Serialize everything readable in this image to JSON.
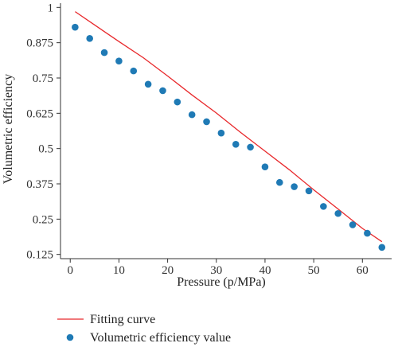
{
  "chart_data": {
    "type": "scatter",
    "xlabel": "Pressure (p/MPa)",
    "ylabel": "Volumetric efficiency",
    "xlim": [
      -2,
      66
    ],
    "ylim": [
      0.11,
      1.015
    ],
    "x_ticks": [
      0,
      10,
      20,
      30,
      40,
      50,
      60
    ],
    "x_tick_labels": [
      "0",
      "10",
      "20",
      "30",
      "40",
      "50",
      "60"
    ],
    "y_ticks": [
      0.125,
      0.25,
      0.375,
      0.5,
      0.625,
      0.75,
      0.875,
      1
    ],
    "y_tick_labels": [
      "0.125",
      "0.25",
      "0.375",
      "0.5",
      "0.625",
      "0.75",
      "0.875",
      "1"
    ],
    "grid": false,
    "legend_position": "bottom-left, below plot",
    "series": [
      {
        "name": "Fitting curve",
        "kind": "line",
        "color": "#e8282b",
        "x": [
          1,
          5,
          10,
          15,
          20,
          25,
          30,
          35,
          40,
          45,
          50,
          55,
          60,
          64
        ],
        "y": [
          0.985,
          0.938,
          0.879,
          0.822,
          0.757,
          0.69,
          0.626,
          0.557,
          0.491,
          0.425,
          0.354,
          0.286,
          0.217,
          0.17
        ]
      },
      {
        "name": "Volumetric efficiency value",
        "kind": "scatter",
        "color": "#1f7ab5",
        "x": [
          1,
          4,
          7,
          10,
          13,
          16,
          19,
          22,
          25,
          28,
          31,
          34,
          37,
          40,
          43,
          46,
          49,
          52,
          55,
          58,
          61,
          64
        ],
        "y": [
          0.93,
          0.89,
          0.84,
          0.81,
          0.775,
          0.728,
          0.705,
          0.665,
          0.62,
          0.595,
          0.555,
          0.515,
          0.505,
          0.435,
          0.38,
          0.365,
          0.35,
          0.295,
          0.27,
          0.23,
          0.2,
          0.15
        ]
      }
    ]
  }
}
